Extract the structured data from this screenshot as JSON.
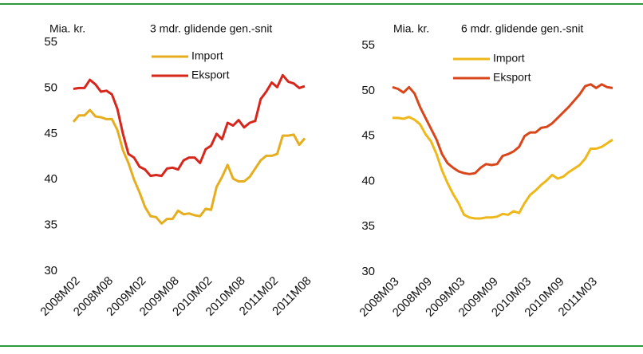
{
  "chart_data": [
    {
      "type": "line",
      "ylabel": "Mia. kr.",
      "title": "3 mdr. glidende gen.-snit",
      "categories": [
        "2008M02",
        null,
        null,
        null,
        null,
        null,
        "2008M08",
        null,
        null,
        null,
        null,
        null,
        "2009M02",
        null,
        null,
        null,
        null,
        null,
        "2009M08",
        null,
        null,
        null,
        null,
        null,
        "2010M02",
        null,
        null,
        null,
        null,
        null,
        "2010M08",
        null,
        null,
        null,
        null,
        null,
        "2011M02",
        null,
        null,
        null,
        null,
        null,
        "2011M08"
      ],
      "ylim": [
        30,
        55
      ],
      "yticks": [
        30,
        35,
        40,
        45,
        50,
        55
      ],
      "series": [
        {
          "name": "Import",
          "color": "#e6ae1f",
          "values": [
            46.3,
            47.0,
            47.0,
            47.6,
            46.9,
            46.8,
            46.6,
            46.6,
            45.4,
            43.2,
            41.8,
            40.0,
            38.6,
            37.0,
            36.0,
            35.9,
            35.2,
            35.7,
            35.7,
            36.6,
            36.2,
            36.3,
            36.1,
            36.0,
            36.8,
            36.7,
            39.2,
            40.3,
            41.6,
            40.1,
            39.8,
            39.8,
            40.3,
            41.2,
            42.1,
            42.6,
            42.6,
            42.8,
            44.8,
            44.8,
            44.9,
            43.8,
            44.5
          ]
        },
        {
          "name": "Eksport",
          "color": "#d7261b",
          "values": [
            49.9,
            50.0,
            50.0,
            50.9,
            50.4,
            49.6,
            49.7,
            49.3,
            47.7,
            45.0,
            42.8,
            42.4,
            41.4,
            41.1,
            40.4,
            40.5,
            40.4,
            41.2,
            41.3,
            41.1,
            42.1,
            42.4,
            42.4,
            41.8,
            43.3,
            43.7,
            45.0,
            44.4,
            46.2,
            45.9,
            46.5,
            45.7,
            46.2,
            46.4,
            48.8,
            49.6,
            50.6,
            50.1,
            51.4,
            50.7,
            50.5,
            50.0,
            50.2
          ]
        }
      ]
    },
    {
      "type": "line",
      "ylabel": "Mia. kr.",
      "title": "6 mdr. glidende gen.-snit",
      "categories": [
        "2008M03",
        null,
        null,
        null,
        null,
        null,
        "2008M09",
        null,
        null,
        null,
        null,
        null,
        "2009M03",
        null,
        null,
        null,
        null,
        null,
        "2009M09",
        null,
        null,
        null,
        null,
        null,
        "2010M03",
        null,
        null,
        null,
        null,
        null,
        "2010M09",
        null,
        null,
        null,
        null,
        null,
        "2011M03",
        null,
        null,
        null,
        null
      ],
      "ylim": [
        30,
        55
      ],
      "yticks": [
        30,
        35,
        40,
        45,
        50,
        55
      ],
      "series": [
        {
          "name": "Import",
          "color": "#efb81a",
          "values": [
            47.0,
            47.0,
            46.9,
            47.1,
            46.8,
            46.3,
            45.2,
            44.4,
            43.0,
            41.2,
            39.8,
            38.6,
            37.6,
            36.3,
            36.0,
            35.9,
            35.9,
            36.0,
            36.0,
            36.1,
            36.4,
            36.3,
            36.7,
            36.5,
            37.6,
            38.5,
            39.0,
            39.6,
            40.1,
            40.7,
            40.3,
            40.5,
            41.0,
            41.4,
            41.8,
            42.5,
            43.6,
            43.6,
            43.8,
            44.2,
            44.6
          ]
        },
        {
          "name": "Eksport",
          "color": "#d9461a",
          "values": [
            50.4,
            50.2,
            49.8,
            50.4,
            49.7,
            48.2,
            47.0,
            45.8,
            44.6,
            43.0,
            42.0,
            41.5,
            41.1,
            40.9,
            40.8,
            40.9,
            41.5,
            41.9,
            41.8,
            41.9,
            42.8,
            43.0,
            43.3,
            43.8,
            45.0,
            45.4,
            45.4,
            45.9,
            46.0,
            46.4,
            47.0,
            47.6,
            48.2,
            48.9,
            49.6,
            50.5,
            50.7,
            50.3,
            50.7,
            50.4,
            50.3
          ]
        }
      ]
    }
  ]
}
